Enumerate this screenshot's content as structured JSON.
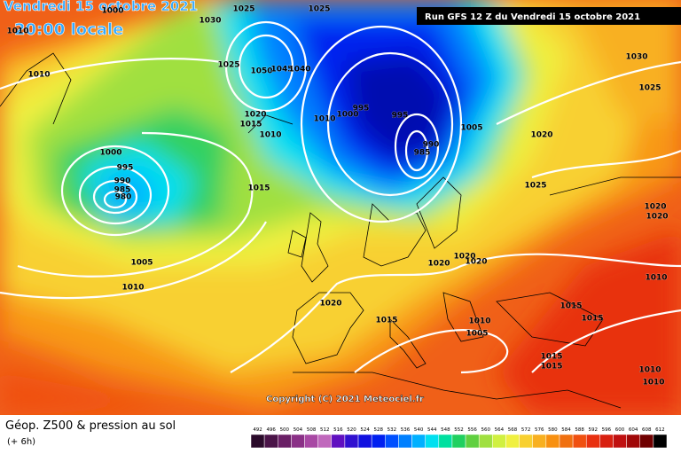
{
  "header": {
    "date": "Vendredi 15 octobre 2021",
    "time": "20:00 locale",
    "run": "Run GFS 12 Z du Vendredi 15 octobre 2021"
  },
  "copyright": "Copyright (C) 2021 Meteociel.fr",
  "footer": {
    "title": "Géop. Z500 & pression au sol",
    "step": "(+ 6h)"
  },
  "legend": {
    "values": [
      492,
      496,
      500,
      504,
      508,
      512,
      516,
      520,
      524,
      528,
      532,
      536,
      540,
      544,
      548,
      552,
      556,
      560,
      564,
      568,
      572,
      576,
      580,
      584,
      588,
      592,
      596,
      600,
      604,
      608,
      612
    ],
    "colors": [
      "#2a0a2a",
      "#4a1448",
      "#6a2066",
      "#8a3086",
      "#a848a4",
      "#c068bc",
      "#6010c0",
      "#3010d0",
      "#1010e0",
      "#0020f0",
      "#0050ff",
      "#0080ff",
      "#00b0ff",
      "#00e0f0",
      "#00e0a0",
      "#20d060",
      "#60d040",
      "#a0e040",
      "#d0f040",
      "#f0f040",
      "#f8d030",
      "#f8b020",
      "#f89010",
      "#f07010",
      "#f05010",
      "#e83010",
      "#d82010",
      "#c01010",
      "#a00808",
      "#700000",
      "#000000"
    ]
  },
  "isobar_labels": [
    1000,
    1010,
    1025,
    1025,
    1030,
    1010,
    1025,
    1050,
    1045,
    1040,
    1020,
    1015,
    1010,
    1010,
    1000,
    995,
    995,
    990,
    985,
    1005,
    1020,
    1030,
    1025,
    1000,
    995,
    990,
    985,
    980,
    1015,
    1025,
    1020,
    1020,
    1005,
    1010,
    1020,
    1020,
    1020,
    1010,
    1020,
    1015,
    1015,
    1015,
    1010,
    1005,
    1015,
    1015,
    1010,
    1010
  ]
}
